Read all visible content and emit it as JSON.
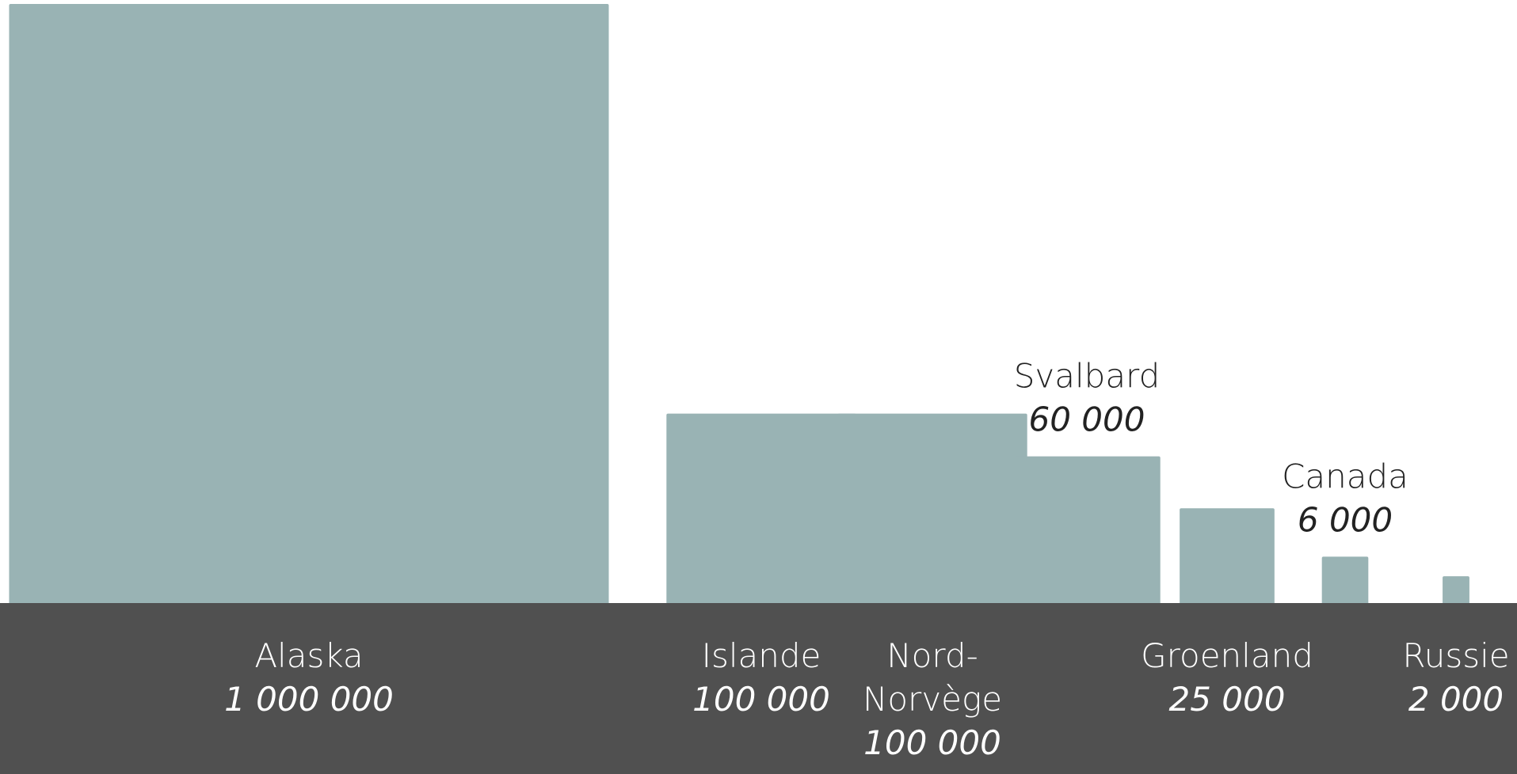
{
  "chart_data": {
    "type": "bar",
    "categories": [
      "Alaska",
      "Islande",
      "Nord-Norvège",
      "Svalbard",
      "Groenland",
      "Canada",
      "Russie"
    ],
    "values": [
      1000000,
      100000,
      100000,
      60000,
      25000,
      6000,
      2000
    ],
    "value_labels": [
      "1 000 000",
      "100 000",
      "100 000",
      "60 000",
      "25 000",
      "6 000",
      "2 000"
    ],
    "name_lines": [
      [
        "Alaska"
      ],
      [
        "Islande"
      ],
      [
        "Nord-",
        "Norvège"
      ],
      [
        "Svalbard"
      ],
      [
        "Groenland"
      ],
      [
        "Canada"
      ],
      [
        "Russie"
      ]
    ],
    "label_positions": [
      "below",
      "below",
      "below",
      "above",
      "below",
      "above",
      "below"
    ],
    "bar_shape": "square area proportional to value",
    "colors": {
      "bar": "#99b3b4",
      "band": "#505050",
      "background": "#ffffff"
    }
  }
}
